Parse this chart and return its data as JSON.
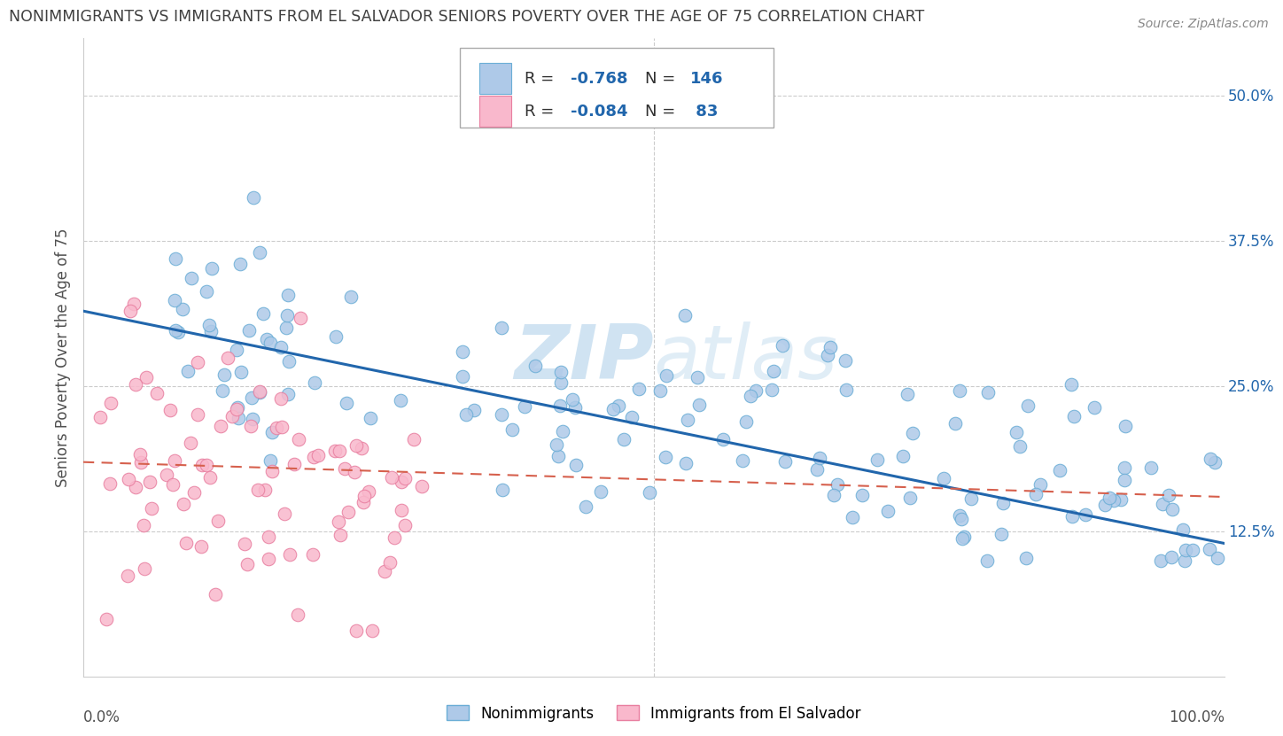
{
  "title": "NONIMMIGRANTS VS IMMIGRANTS FROM EL SALVADOR SENIORS POVERTY OVER THE AGE OF 75 CORRELATION CHART",
  "source": "Source: ZipAtlas.com",
  "ylabel": "Seniors Poverty Over the Age of 75",
  "legend_nonimm": "Nonimmigrants",
  "legend_imm": "Immigrants from El Salvador",
  "R_nonimm": -0.768,
  "N_nonimm": 146,
  "R_imm": -0.084,
  "N_imm": 83,
  "blue_fill": "#aec9e8",
  "blue_edge": "#6baed6",
  "pink_fill": "#f9b8cc",
  "pink_edge": "#e87fa0",
  "blue_line_color": "#2166ac",
  "pink_line_color": "#d6604d",
  "background_color": "#ffffff",
  "grid_color": "#cccccc",
  "watermark_color": "#c8dff0",
  "title_color": "#404040",
  "source_color": "#888888",
  "xlim": [
    0.0,
    1.0
  ],
  "ylim": [
    0.0,
    0.55
  ],
  "ytick_vals": [
    0.125,
    0.25,
    0.375,
    0.5
  ],
  "ytick_labels": [
    "12.5%",
    "25.0%",
    "37.5%",
    "50.0%"
  ],
  "blue_trend_start_y": 0.315,
  "blue_trend_end_y": 0.115,
  "pink_trend_start_y": 0.185,
  "pink_trend_end_y": 0.155
}
